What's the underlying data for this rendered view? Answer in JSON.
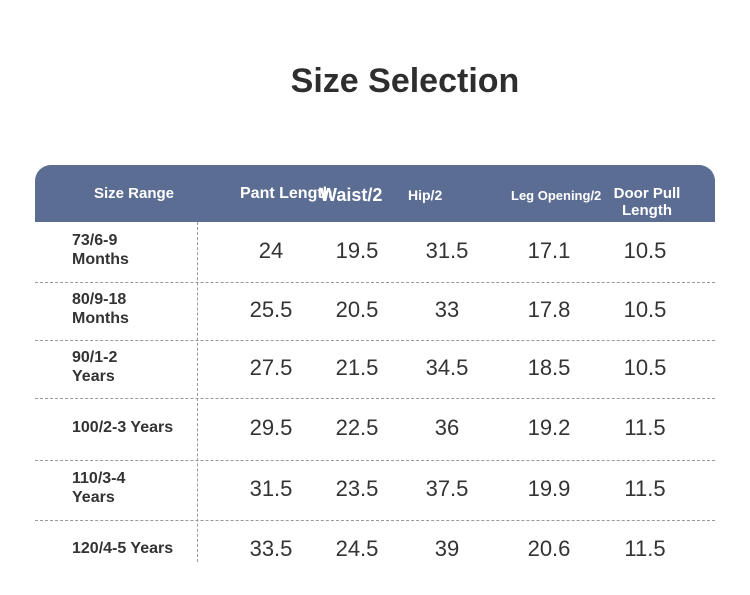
{
  "title": "Size Selection",
  "table": {
    "headers": [
      "Size Range",
      "Pant Length",
      "Waist/2",
      "Hip/2",
      "Leg Opening/2",
      "Door Pull\nLength"
    ],
    "rows": [
      [
        "73/6-9\n Months",
        "24",
        "19.5",
        "31.5",
        "17.1",
        "10.5"
      ],
      [
        "80/9-18\n Months",
        "25.5",
        "20.5",
        "33",
        "17.8",
        "10.5"
      ],
      [
        "90/1-2\n Years",
        "27.5",
        "21.5",
        "34.5",
        "18.5",
        "10.5"
      ],
      [
        "100/2-3 Years",
        "29.5",
        "22.5",
        "36",
        "19.2",
        "11.5"
      ],
      [
        "110/3-4\n Years",
        "31.5",
        "23.5",
        "37.5",
        "19.9",
        "11.5"
      ],
      [
        "120/4-5 Years",
        "33.5",
        "24.5",
        "39",
        "20.6",
        "11.5"
      ]
    ]
  }
}
